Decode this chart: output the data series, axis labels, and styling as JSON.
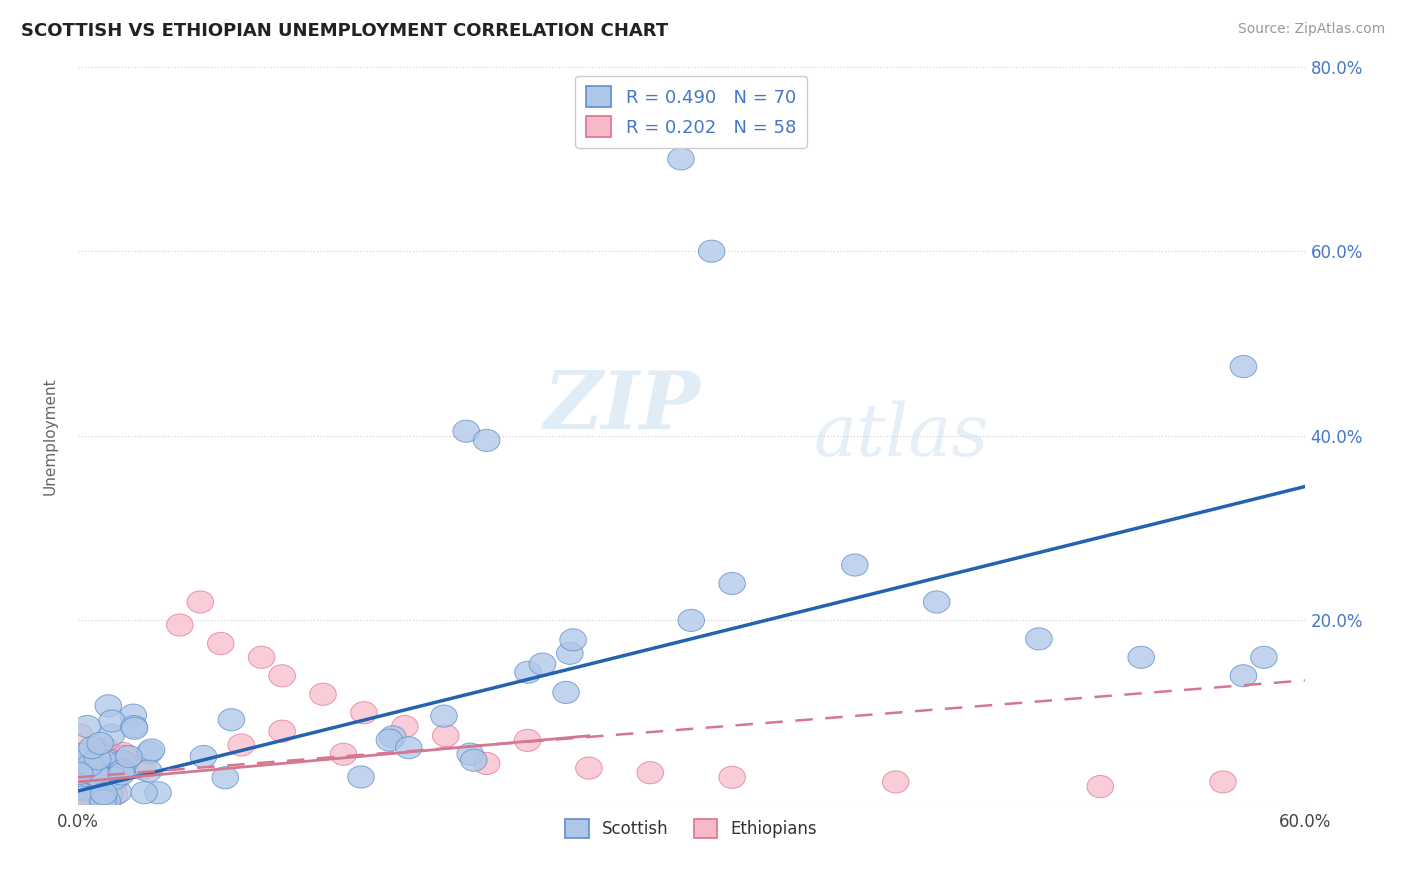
{
  "title": "SCOTTISH VS ETHIOPIAN UNEMPLOYMENT CORRELATION CHART",
  "source_text": "Source: ZipAtlas.com",
  "ylabel": "Unemployment",
  "xlim": [
    0.0,
    0.6
  ],
  "ylim": [
    0.0,
    0.8
  ],
  "scottish_color": "#aec6e8",
  "scottish_edge_color": "#5b8fc9",
  "ethiopian_color": "#f7b8c8",
  "ethiopian_edge_color": "#e07090",
  "scottish_line_color": "#2563b0",
  "ethiopian_line_color": "#d47890",
  "grid_color": "#cccccc",
  "R_scottish": 0.49,
  "N_scottish": 70,
  "R_ethiopian": 0.202,
  "N_ethiopian": 58,
  "background_color": "#ffffff",
  "title_fontsize": 13,
  "axis_label_color": "#4477cc",
  "legend_text_color": "#4477cc",
  "watermark_zip_color": "#c8ddf0",
  "watermark_atlas_color": "#c8ddf0"
}
